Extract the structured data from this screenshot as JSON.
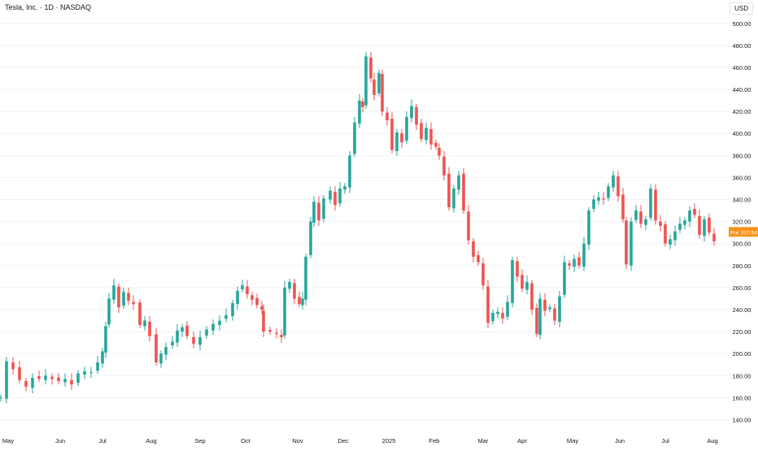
{
  "header": {
    "symbol": "Tesla, Inc. · 1D · NASDAQ",
    "currency": "USD"
  },
  "price_tag": {
    "label": "Pre",
    "value": "310.54",
    "color": "#f7931a"
  },
  "colors": {
    "up": "#26a69a",
    "down": "#ef5350",
    "axis_text": "#131722",
    "grid": "#f0f3fa"
  },
  "chart_data": {
    "type": "candlestick",
    "title": "Tesla, Inc. · 1D · NASDAQ",
    "ylim": [
      130,
      505
    ],
    "y_ticks": [
      "500.00",
      "480.00",
      "460.00",
      "440.00",
      "420.00",
      "400.00",
      "380.00",
      "360.00",
      "340.00",
      "320.00",
      "300.00",
      "280.00",
      "260.00",
      "240.00",
      "220.00",
      "200.00",
      "180.00",
      "160.00",
      "140.00"
    ],
    "x_ticks": [
      "May",
      "Jun",
      "Jul",
      "Aug",
      "Sep",
      "Oct",
      "Nov",
      "Dec",
      "2025",
      "Feb",
      "Mar",
      "Apr",
      "May",
      "Jun",
      "Jul",
      "Aug"
    ],
    "close_series": [
      {
        "x": 1,
        "close": 160
      },
      {
        "x": 8,
        "close": 193
      },
      {
        "x": 16,
        "close": 186
      },
      {
        "x": 24,
        "close": 176
      },
      {
        "x": 32,
        "close": 170
      },
      {
        "x": 40,
        "close": 178
      },
      {
        "x": 48,
        "close": 177
      },
      {
        "x": 56,
        "close": 180
      },
      {
        "x": 64,
        "close": 177
      },
      {
        "x": 72,
        "close": 175
      },
      {
        "x": 80,
        "close": 177
      },
      {
        "x": 88,
        "close": 172
      },
      {
        "x": 96,
        "close": 182
      },
      {
        "x": 104,
        "close": 184
      },
      {
        "x": 112,
        "close": 183
      },
      {
        "x": 120,
        "close": 192
      },
      {
        "x": 126,
        "close": 202
      },
      {
        "x": 130,
        "close": 225
      },
      {
        "x": 134,
        "close": 250
      },
      {
        "x": 140,
        "close": 262
      },
      {
        "x": 146,
        "close": 242
      },
      {
        "x": 152,
        "close": 256
      },
      {
        "x": 158,
        "close": 248
      },
      {
        "x": 164,
        "close": 245
      },
      {
        "x": 172,
        "close": 226
      },
      {
        "x": 178,
        "close": 230
      },
      {
        "x": 184,
        "close": 216
      },
      {
        "x": 192,
        "close": 192
      },
      {
        "x": 198,
        "close": 200
      },
      {
        "x": 204,
        "close": 206
      },
      {
        "x": 212,
        "close": 211
      },
      {
        "x": 218,
        "close": 221
      },
      {
        "x": 224,
        "close": 224
      },
      {
        "x": 230,
        "close": 216
      },
      {
        "x": 238,
        "close": 209
      },
      {
        "x": 246,
        "close": 215
      },
      {
        "x": 254,
        "close": 222
      },
      {
        "x": 262,
        "close": 227
      },
      {
        "x": 270,
        "close": 230
      },
      {
        "x": 278,
        "close": 235
      },
      {
        "x": 286,
        "close": 246
      },
      {
        "x": 292,
        "close": 257
      },
      {
        "x": 298,
        "close": 262
      },
      {
        "x": 304,
        "close": 254
      },
      {
        "x": 310,
        "close": 249
      },
      {
        "x": 316,
        "close": 244
      },
      {
        "x": 322,
        "close": 240
      },
      {
        "x": 324,
        "close": 220
      },
      {
        "x": 332,
        "close": 220
      },
      {
        "x": 340,
        "close": 218
      },
      {
        "x": 346,
        "close": 215
      },
      {
        "x": 350,
        "close": 260
      },
      {
        "x": 356,
        "close": 265
      },
      {
        "x": 362,
        "close": 250
      },
      {
        "x": 368,
        "close": 245
      },
      {
        "x": 372,
        "close": 250
      },
      {
        "x": 376,
        "close": 288
      },
      {
        "x": 382,
        "close": 320
      },
      {
        "x": 386,
        "close": 338
      },
      {
        "x": 392,
        "close": 321
      },
      {
        "x": 398,
        "close": 341
      },
      {
        "x": 406,
        "close": 348
      },
      {
        "x": 412,
        "close": 335
      },
      {
        "x": 418,
        "close": 350
      },
      {
        "x": 424,
        "close": 352
      },
      {
        "x": 430,
        "close": 380
      },
      {
        "x": 436,
        "close": 410
      },
      {
        "x": 442,
        "close": 430
      },
      {
        "x": 446,
        "close": 424
      },
      {
        "x": 450,
        "close": 470
      },
      {
        "x": 456,
        "close": 450
      },
      {
        "x": 460,
        "close": 435
      },
      {
        "x": 466,
        "close": 455
      },
      {
        "x": 470,
        "close": 420
      },
      {
        "x": 476,
        "close": 412
      },
      {
        "x": 482,
        "close": 385
      },
      {
        "x": 488,
        "close": 401
      },
      {
        "x": 494,
        "close": 392
      },
      {
        "x": 500,
        "close": 415
      },
      {
        "x": 506,
        "close": 425
      },
      {
        "x": 512,
        "close": 408
      },
      {
        "x": 518,
        "close": 395
      },
      {
        "x": 524,
        "close": 405
      },
      {
        "x": 530,
        "close": 390
      },
      {
        "x": 536,
        "close": 388
      },
      {
        "x": 540,
        "close": 380
      },
      {
        "x": 546,
        "close": 362
      },
      {
        "x": 552,
        "close": 333
      },
      {
        "x": 558,
        "close": 350
      },
      {
        "x": 564,
        "close": 362
      },
      {
        "x": 570,
        "close": 330
      },
      {
        "x": 576,
        "close": 303
      },
      {
        "x": 582,
        "close": 288
      },
      {
        "x": 588,
        "close": 283
      },
      {
        "x": 594,
        "close": 262
      },
      {
        "x": 600,
        "close": 228
      },
      {
        "x": 606,
        "close": 237
      },
      {
        "x": 612,
        "close": 238
      },
      {
        "x": 618,
        "close": 232
      },
      {
        "x": 624,
        "close": 247
      },
      {
        "x": 630,
        "close": 285
      },
      {
        "x": 636,
        "close": 270
      },
      {
        "x": 642,
        "close": 259
      },
      {
        "x": 648,
        "close": 265
      },
      {
        "x": 654,
        "close": 240
      },
      {
        "x": 660,
        "close": 218
      },
      {
        "x": 664,
        "close": 250
      },
      {
        "x": 670,
        "close": 239
      },
      {
        "x": 676,
        "close": 242
      },
      {
        "x": 682,
        "close": 230
      },
      {
        "x": 688,
        "close": 252
      },
      {
        "x": 694,
        "close": 283
      },
      {
        "x": 700,
        "close": 280
      },
      {
        "x": 706,
        "close": 286
      },
      {
        "x": 712,
        "close": 280
      },
      {
        "x": 718,
        "close": 300
      },
      {
        "x": 724,
        "close": 330
      },
      {
        "x": 730,
        "close": 340
      },
      {
        "x": 736,
        "close": 342
      },
      {
        "x": 742,
        "close": 340
      },
      {
        "x": 748,
        "close": 352
      },
      {
        "x": 754,
        "close": 362
      },
      {
        "x": 760,
        "close": 343
      },
      {
        "x": 766,
        "close": 322
      },
      {
        "x": 770,
        "close": 281
      },
      {
        "x": 776,
        "close": 320
      },
      {
        "x": 782,
        "close": 330
      },
      {
        "x": 788,
        "close": 318
      },
      {
        "x": 794,
        "close": 322
      },
      {
        "x": 800,
        "close": 350
      },
      {
        "x": 806,
        "close": 321
      },
      {
        "x": 812,
        "close": 316
      },
      {
        "x": 818,
        "close": 300
      },
      {
        "x": 824,
        "close": 304
      },
      {
        "x": 830,
        "close": 311
      },
      {
        "x": 836,
        "close": 318
      },
      {
        "x": 842,
        "close": 321
      },
      {
        "x": 848,
        "close": 330
      },
      {
        "x": 854,
        "close": 326
      },
      {
        "x": 860,
        "close": 308
      },
      {
        "x": 866,
        "close": 322
      },
      {
        "x": 872,
        "close": 310
      },
      {
        "x": 878,
        "close": 302
      }
    ]
  }
}
